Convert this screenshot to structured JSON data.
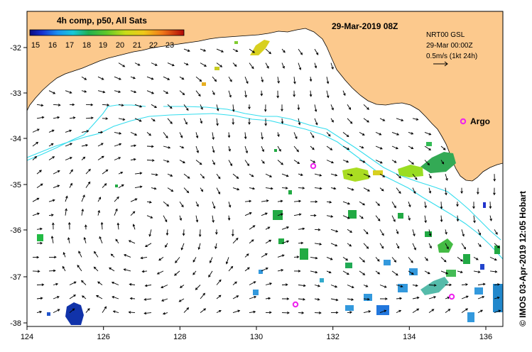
{
  "title": "29-Mar-2019 08Z",
  "legend": {
    "label": "4h comp, p50, All Sats",
    "ticks": [
      "15",
      "16",
      "17",
      "18",
      "19",
      "20",
      "21",
      "22",
      "23"
    ]
  },
  "current_info": {
    "line1": "NRT00 GSL",
    "line2": "29-Mar 00:00Z",
    "line3": "0.5m/s (1kt 24h)"
  },
  "argo_label": "Argo",
  "credit": "© IMOS 03-Apr-2019 12:05 Hobart",
  "x_ticks": [
    "124",
    "126",
    "128",
    "130",
    "132",
    "134",
    "136"
  ],
  "y_ticks": [
    "-32",
    "-33",
    "-34",
    "-35",
    "-36",
    "-37",
    "-38"
  ],
  "colors": {
    "land": "#fcc98d",
    "isobath": "#33ddee",
    "argo": "#ee22ee",
    "arrow": "#000000"
  }
}
